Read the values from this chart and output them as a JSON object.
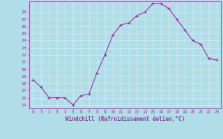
{
  "x": [
    0,
    1,
    2,
    3,
    4,
    5,
    6,
    7,
    8,
    9,
    10,
    11,
    12,
    13,
    14,
    15,
    16,
    17,
    18,
    19,
    20,
    21,
    22,
    23
  ],
  "y": [
    18.5,
    17.5,
    16.0,
    16.0,
    16.0,
    15.0,
    16.3,
    16.5,
    19.5,
    22.0,
    24.8,
    26.2,
    26.5,
    27.5,
    28.0,
    29.2,
    29.2,
    28.5,
    27.0,
    25.5,
    24.0,
    23.5,
    21.5,
    21.3
  ],
  "line_color": "#993399",
  "marker": "+",
  "bg_color": "#b0dde8",
  "grid_color": "#d0eef5",
  "xlabel": "Windchill (Refroidissement éolien,°C)",
  "xlabel_color": "#993399",
  "tick_color": "#993399",
  "ylabel_ticks": [
    15,
    16,
    17,
    18,
    19,
    20,
    21,
    22,
    23,
    24,
    25,
    26,
    27,
    28
  ],
  "xlim": [
    -0.5,
    23.5
  ],
  "ylim": [
    14.5,
    29.5
  ]
}
